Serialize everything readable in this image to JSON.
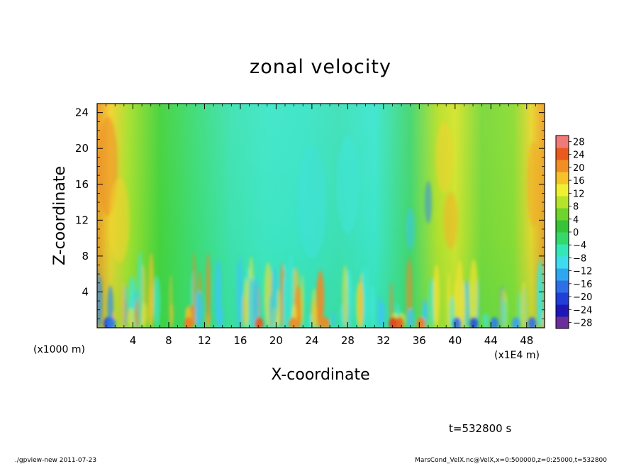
{
  "chart_data": {
    "type": "heatmap",
    "title": "zonal velocity",
    "xlabel": "X-coordinate",
    "ylabel": "Z-coordinate",
    "x_unit_left": "(x1000 m)",
    "x_unit_right": "(x1E4 m)",
    "xlim": [
      0,
      50
    ],
    "ylim": [
      0,
      25
    ],
    "x_ticks": [
      "4",
      "8",
      "12",
      "16",
      "20",
      "24",
      "28",
      "32",
      "36",
      "40",
      "44",
      "48"
    ],
    "y_ticks": [
      "4",
      "8",
      "12",
      "16",
      "20",
      "24"
    ],
    "time_label": "t=532800 s",
    "colorbar": {
      "levels": [
        "28",
        "24",
        "20",
        "16",
        "12",
        "8",
        "4",
        "0",
        "-4",
        "-8",
        "-12",
        "-16",
        "-20",
        "-24",
        "-28"
      ],
      "colors": [
        "#6a2e9a",
        "#1e17b6",
        "#1f3fd8",
        "#2e6fe8",
        "#2fa7f0",
        "#3fdcf0",
        "#34e8b6",
        "#35d86a",
        "#37c436",
        "#6fd42c",
        "#b7e42a",
        "#f0f032",
        "#f6c22a",
        "#f18f24",
        "#ea5a1e",
        "#f07a7a"
      ],
      "min": -28,
      "max": 28
    }
  },
  "footer": {
    "left": "./gpview-new  2011-07-23",
    "right": "MarsCond_VelX.nc@VelX,x=0:500000,z=0:25000,t=532800"
  }
}
